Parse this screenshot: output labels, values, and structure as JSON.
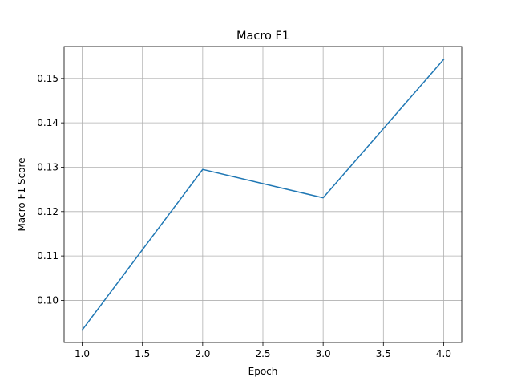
{
  "chart_data": {
    "type": "line",
    "title": "Macro F1",
    "xlabel": "Epoch",
    "ylabel": "Macro F1 Score",
    "xlim": [
      0.85,
      4.15
    ],
    "ylim": [
      0.0905,
      0.1572
    ],
    "grid": true,
    "x_ticks": [
      1.0,
      1.5,
      2.0,
      2.5,
      3.0,
      3.5,
      4.0
    ],
    "x_tick_labels": [
      "1.0",
      "1.5",
      "2.0",
      "2.5",
      "3.0",
      "3.5",
      "4.0"
    ],
    "y_ticks": [
      0.1,
      0.11,
      0.12,
      0.13,
      0.14,
      0.15
    ],
    "y_tick_labels": [
      "0.10",
      "0.11",
      "0.12",
      "0.13",
      "0.14",
      "0.15"
    ],
    "series": [
      {
        "color": "#1f77b4",
        "x": [
          1.0,
          2.0,
          3.0,
          4.0
        ],
        "y": [
          0.0933,
          0.1295,
          0.1231,
          0.1543
        ]
      }
    ]
  }
}
